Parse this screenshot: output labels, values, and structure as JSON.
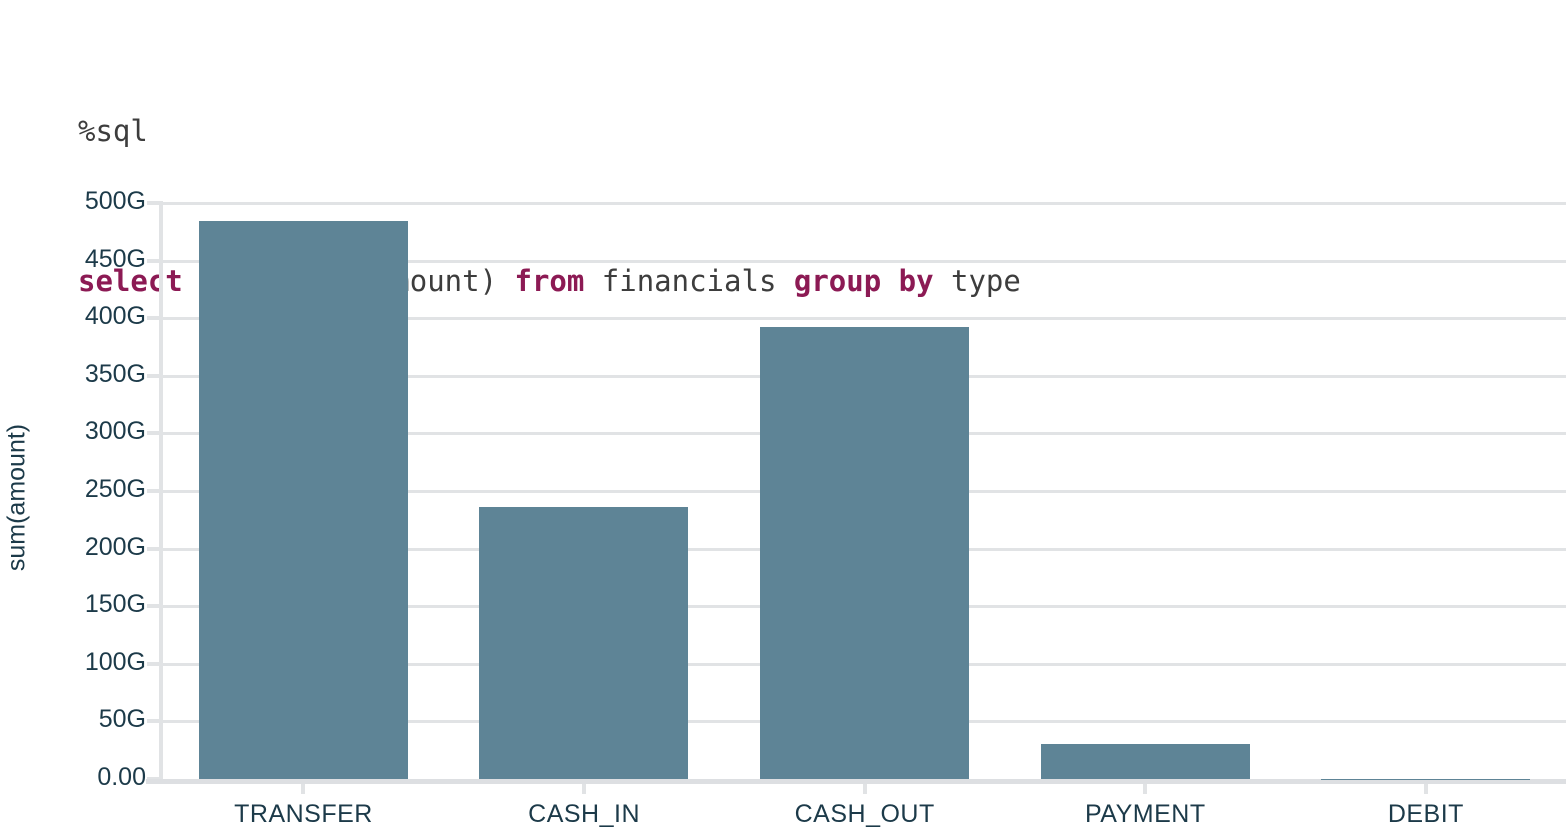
{
  "code": {
    "magic": "%sql",
    "statement_tokens": [
      {
        "text": "select",
        "type": "keyword"
      },
      {
        "text": " type, sum(amount) ",
        "type": "plain"
      },
      {
        "text": "from",
        "type": "keyword"
      },
      {
        "text": " financials ",
        "type": "plain"
      },
      {
        "text": "group by",
        "type": "keyword"
      },
      {
        "text": " type",
        "type": "plain"
      }
    ]
  },
  "chart_data": {
    "type": "bar",
    "categories": [
      "TRANSFER",
      "CASH_IN",
      "CASH_OUT",
      "PAYMENT",
      "DEBIT"
    ],
    "values": [
      484,
      236,
      392,
      30,
      0.2
    ],
    "unit": "G",
    "title": "",
    "xlabel": "",
    "ylabel": "sum(amount)",
    "ylim": [
      0,
      500
    ],
    "ytick_labels": [
      "0.00",
      "50G",
      "100G",
      "150G",
      "200G",
      "250G",
      "300G",
      "350G",
      "400G",
      "450G",
      "500G"
    ],
    "grid": true,
    "legend": false
  },
  "colors": {
    "bar": "#5e8496",
    "grid": "#e1e3e5",
    "axis": "#dddfe2",
    "tick_text": "#1c3a49",
    "code_plain": "#3d3d3d",
    "code_keyword": "#8c1a54"
  }
}
